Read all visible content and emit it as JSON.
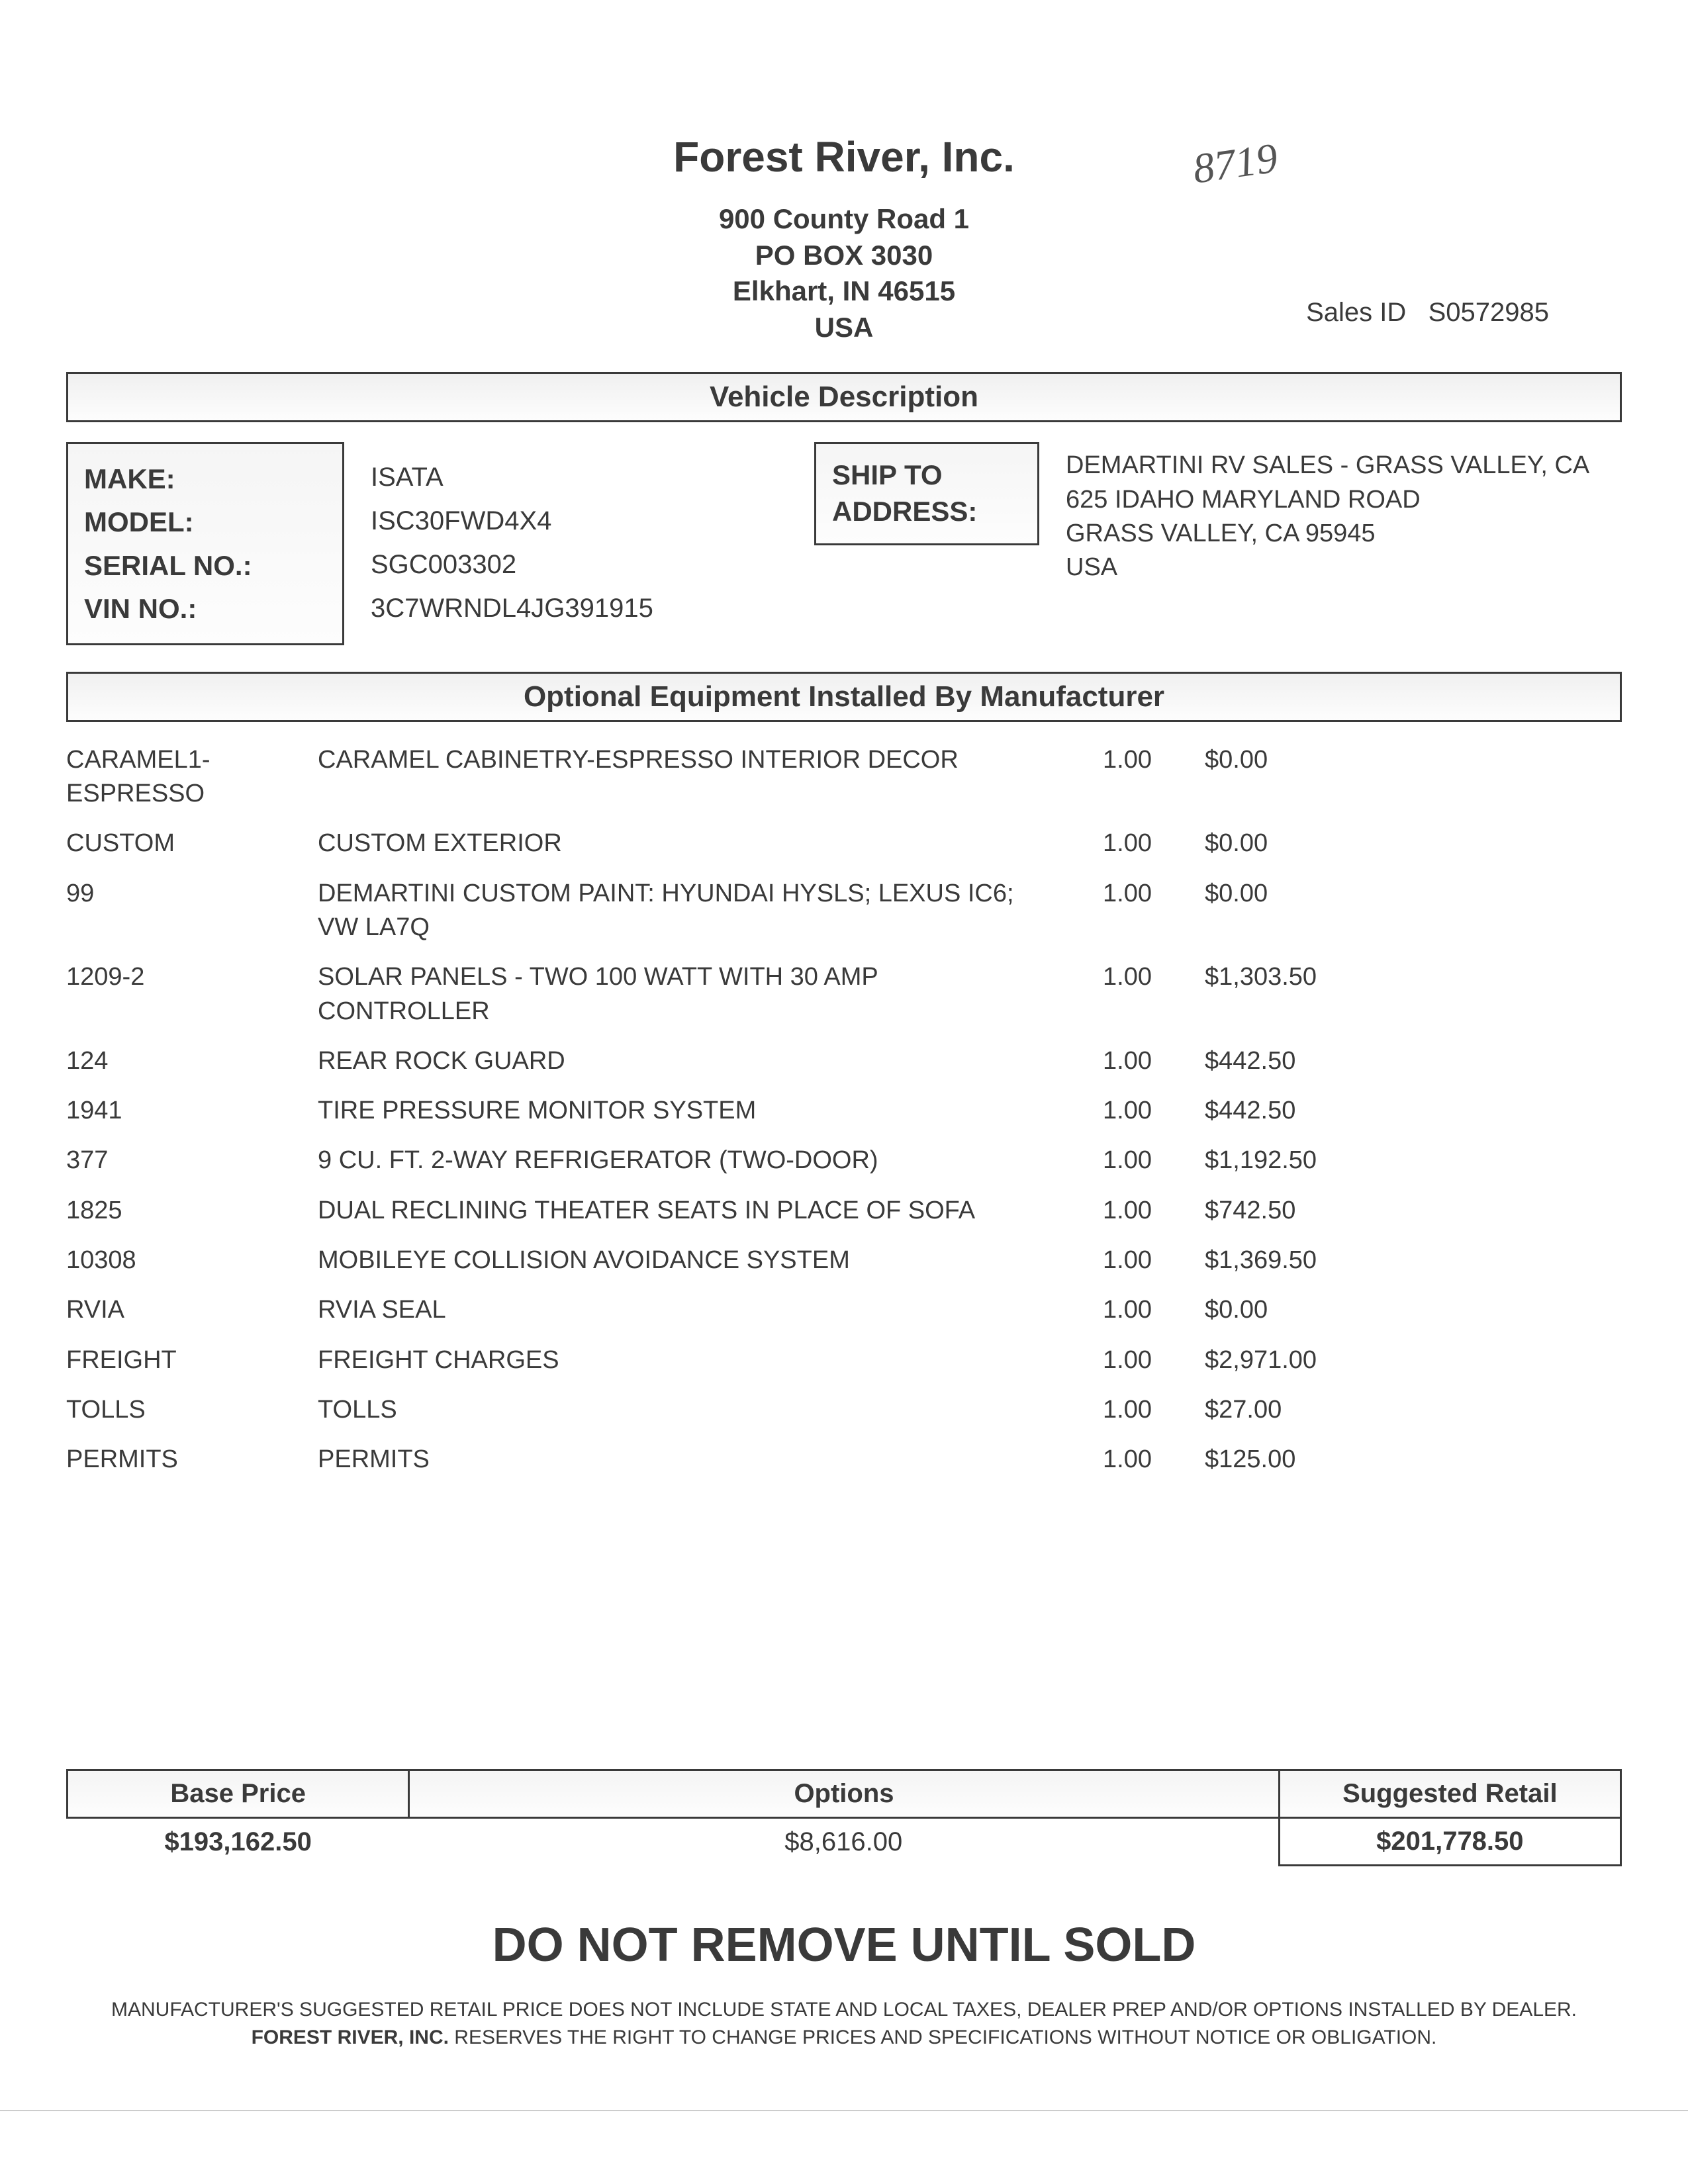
{
  "header": {
    "company": "Forest River, Inc.",
    "addr1": "900 County Road 1",
    "addr2": "PO BOX 3030",
    "addr3": "Elkhart, IN 46515",
    "addr4": "USA",
    "handwritten": "8719",
    "sales_id_label": "Sales ID",
    "sales_id_value": "S0572985"
  },
  "section_titles": {
    "vehicle": "Vehicle Description",
    "equipment": "Optional Equipment Installed By Manufacturer"
  },
  "vehicle": {
    "labels": {
      "make": "MAKE:",
      "model": "MODEL:",
      "serial": "SERIAL NO.:",
      "vin": "VIN NO.:"
    },
    "make": "ISATA",
    "model": "ISC30FWD4X4",
    "serial": "SGC003302",
    "vin": "3C7WRNDL4JG391915",
    "ship_label1": "SHIP TO",
    "ship_label2": "ADDRESS:",
    "ship_to": {
      "l1": "DEMARTINI RV SALES - GRASS VALLEY, CA",
      "l2": "625 IDAHO MARYLAND ROAD",
      "l3": "GRASS VALLEY, CA 95945",
      "l4": "USA"
    }
  },
  "equipment": [
    {
      "code": "CARAMEL1-ESPRESSO",
      "desc": "CARAMEL CABINETRY-ESPRESSO INTERIOR DECOR",
      "qty": "1.00",
      "price": "$0.00"
    },
    {
      "code": "CUSTOM",
      "desc": "CUSTOM EXTERIOR",
      "qty": "1.00",
      "price": "$0.00"
    },
    {
      "code": "99",
      "desc": "DEMARTINI CUSTOM PAINT:  HYUNDAI HYSLS; LEXUS IC6; VW LA7Q",
      "qty": "1.00",
      "price": "$0.00"
    },
    {
      "code": "1209-2",
      "desc": "SOLAR PANELS - TWO 100 WATT WITH 30 AMP CONTROLLER",
      "qty": "1.00",
      "price": "$1,303.50"
    },
    {
      "code": "124",
      "desc": "REAR ROCK GUARD",
      "qty": "1.00",
      "price": "$442.50"
    },
    {
      "code": "1941",
      "desc": "TIRE PRESSURE MONITOR SYSTEM",
      "qty": "1.00",
      "price": "$442.50"
    },
    {
      "code": "377",
      "desc": "9 CU. FT.  2-WAY REFRIGERATOR (TWO-DOOR)",
      "qty": "1.00",
      "price": "$1,192.50"
    },
    {
      "code": "1825",
      "desc": "DUAL RECLINING THEATER SEATS IN PLACE OF SOFA",
      "qty": "1.00",
      "price": "$742.50"
    },
    {
      "code": "10308",
      "desc": "MOBILEYE COLLISION AVOIDANCE SYSTEM",
      "qty": "1.00",
      "price": "$1,369.50"
    },
    {
      "code": "RVIA",
      "desc": "RVIA SEAL",
      "qty": "1.00",
      "price": "$0.00"
    },
    {
      "code": "FREIGHT",
      "desc": "FREIGHT CHARGES",
      "qty": "1.00",
      "price": "$2,971.00"
    },
    {
      "code": "TOLLS",
      "desc": "TOLLS",
      "qty": "1.00",
      "price": "$27.00"
    },
    {
      "code": "PERMITS",
      "desc": "PERMITS",
      "qty": "1.00",
      "price": "$125.00"
    }
  ],
  "totals": {
    "headers": {
      "base": "Base Price",
      "options": "Options",
      "retail": "Suggested Retail"
    },
    "base": "$193,162.50",
    "options": "$8,616.00",
    "retail": "$201,778.50"
  },
  "footer": {
    "banner": "DO NOT REMOVE UNTIL SOLD",
    "disclaimer_1": "MANUFACTURER'S SUGGESTED RETAIL PRICE DOES NOT INCLUDE STATE AND LOCAL TAXES, DEALER PREP AND/OR OPTIONS INSTALLED BY DEALER. ",
    "disclaimer_bold": "FOREST RIVER, INC.",
    "disclaimer_2": " RESERVES THE RIGHT TO CHANGE PRICES AND SPECIFICATIONS WITHOUT NOTICE OR OBLIGATION."
  }
}
